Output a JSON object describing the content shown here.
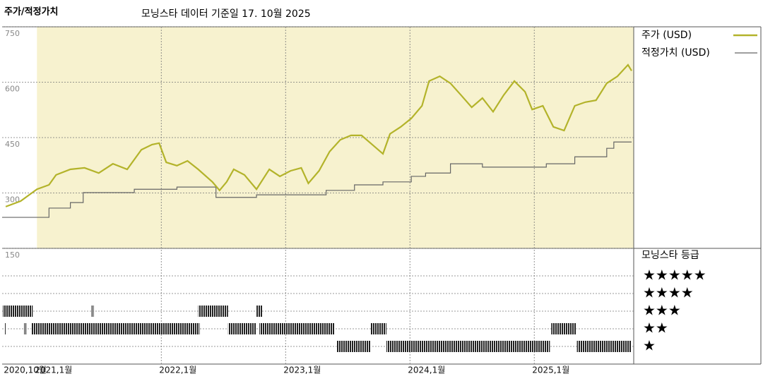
{
  "chart_data": {
    "type": "line",
    "title": "주가/적정가치",
    "subtitle": "모닝스타 데이터 기준일 17. 10월 2025",
    "xlim": [
      2020.72,
      2025.8
    ],
    "xticks": [
      {
        "value": 2020.75,
        "label": "2020,10월"
      },
      {
        "value": 2021,
        "label": "2021,1월"
      },
      {
        "value": 2022,
        "label": "2022,1월"
      },
      {
        "value": 2023,
        "label": "2023,1월"
      },
      {
        "value": 2024,
        "label": "2024,1월"
      },
      {
        "value": 2025,
        "label": "2025,1월"
      }
    ],
    "ylim": [
      150,
      750
    ],
    "yticks": [
      150,
      300,
      450,
      600,
      750
    ],
    "grid": true,
    "series": [
      {
        "name": "주가 (USD)",
        "color": "#b3b32a",
        "x": [
          2020.749,
          2020.869,
          2021.0,
          2021.097,
          2021.154,
          2021.269,
          2021.383,
          2021.497,
          2021.611,
          2021.726,
          2021.84,
          2021.926,
          2021.983,
          2022.04,
          2022.126,
          2022.211,
          2022.297,
          2022.411,
          2022.469,
          2022.526,
          2022.583,
          2022.669,
          2022.766,
          2022.869,
          2022.954,
          2023.04,
          2023.126,
          2023.183,
          2023.269,
          2023.354,
          2023.44,
          2023.526,
          2023.611,
          2023.697,
          2023.783,
          2023.84,
          2023.926,
          2024.011,
          2024.097,
          2024.154,
          2024.24,
          2024.326,
          2024.411,
          2024.497,
          2024.583,
          2024.669,
          2024.754,
          2024.84,
          2024.926,
          2024.983,
          2025.069,
          2025.154,
          2025.24,
          2025.326,
          2025.411,
          2025.497,
          2025.583,
          2025.669,
          2025.754,
          2025.783
        ],
        "values": [
          263,
          278,
          310,
          322,
          349,
          364,
          368,
          354,
          379,
          364,
          417,
          431,
          435,
          383,
          374,
          387,
          364,
          330,
          307,
          330,
          364,
          349,
          310,
          364,
          345,
          360,
          368,
          326,
          360,
          412,
          444,
          456,
          456,
          431,
          406,
          460,
          479,
          502,
          536,
          603,
          616,
          597,
          565,
          532,
          557,
          520,
          565,
          603,
          574,
          526,
          536,
          479,
          469,
          536,
          546,
          551,
          597,
          616,
          647,
          631
        ]
      },
      {
        "name": "적정가치 (USD)",
        "color": "#666666",
        "step": true,
        "x": [
          2020.72,
          2021.097,
          2021.269,
          2021.372,
          2021.783,
          2022.126,
          2022.44,
          2022.766,
          2023.326,
          2023.554,
          2023.783,
          2024.011,
          2024.126,
          2024.326,
          2024.583,
          2025.097,
          2025.326,
          2025.583,
          2025.64,
          2025.783
        ],
        "values": [
          234,
          259,
          274,
          301,
          310,
          316,
          288,
          295,
          307,
          322,
          330,
          345,
          354,
          379,
          370,
          379,
          398,
          421,
          438,
          438
        ]
      }
    ],
    "ratings_title": "모닝스타 등급",
    "rating_levels": [
      "★★★★★",
      "★★★★",
      "★★★",
      "★★",
      "★"
    ],
    "ratings": [
      {
        "start": 2020.726,
        "end": 2020.966,
        "stars": 3
      },
      {
        "start": 2021.44,
        "end": 2021.457,
        "stars": 3
      },
      {
        "start": 2022.297,
        "end": 2022.537,
        "stars": 3
      },
      {
        "start": 2022.766,
        "end": 2022.811,
        "stars": 3
      },
      {
        "start": 2020.743,
        "end": 2020.754,
        "stars": 2
      },
      {
        "start": 2020.897,
        "end": 2020.914,
        "stars": 2
      },
      {
        "start": 2020.954,
        "end": 2022.309,
        "stars": 2
      },
      {
        "start": 2022.537,
        "end": 2022.766,
        "stars": 2
      },
      {
        "start": 2022.789,
        "end": 2023.394,
        "stars": 2
      },
      {
        "start": 2023.686,
        "end": 2023.811,
        "stars": 2
      },
      {
        "start": 2025.137,
        "end": 2025.337,
        "stars": 2
      },
      {
        "start": 2023.411,
        "end": 2023.686,
        "stars": 1
      },
      {
        "start": 2023.811,
        "end": 2025.126,
        "stars": 1
      },
      {
        "start": 2025.343,
        "end": 2025.783,
        "stars": 1
      }
    ]
  }
}
